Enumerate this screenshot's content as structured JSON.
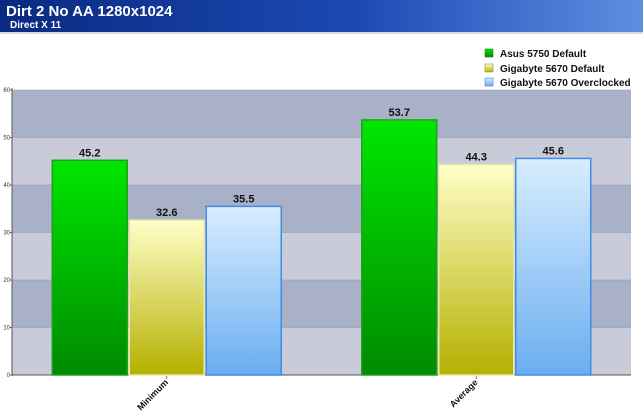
{
  "chart_data": {
    "type": "bar",
    "title": "Dirt 2 No AA 1280x1024",
    "subtitle": "Direct X 11",
    "categories": [
      "Minimum",
      "Average"
    ],
    "series": [
      {
        "name": "Asus 5750 Default",
        "values": [
          45.2,
          53.7
        ],
        "color": "#00cc00"
      },
      {
        "name": "Gigabyte 5670 Default",
        "values": [
          32.6,
          44.3
        ],
        "color": "#d8d860"
      },
      {
        "name": "Gigabyte 5670 Overclocked",
        "values": [
          35.5,
          45.6
        ],
        "color": "#99ccf5"
      }
    ],
    "ylim": [
      0,
      60
    ],
    "yticks": [
      "0",
      "10",
      "20",
      "30",
      "40",
      "50",
      "60"
    ],
    "legend_position": "top-right",
    "grid": true,
    "header_color": "#0a2a80",
    "band_color": "#a9b1c8",
    "plot_color": "#c9cbd9"
  }
}
